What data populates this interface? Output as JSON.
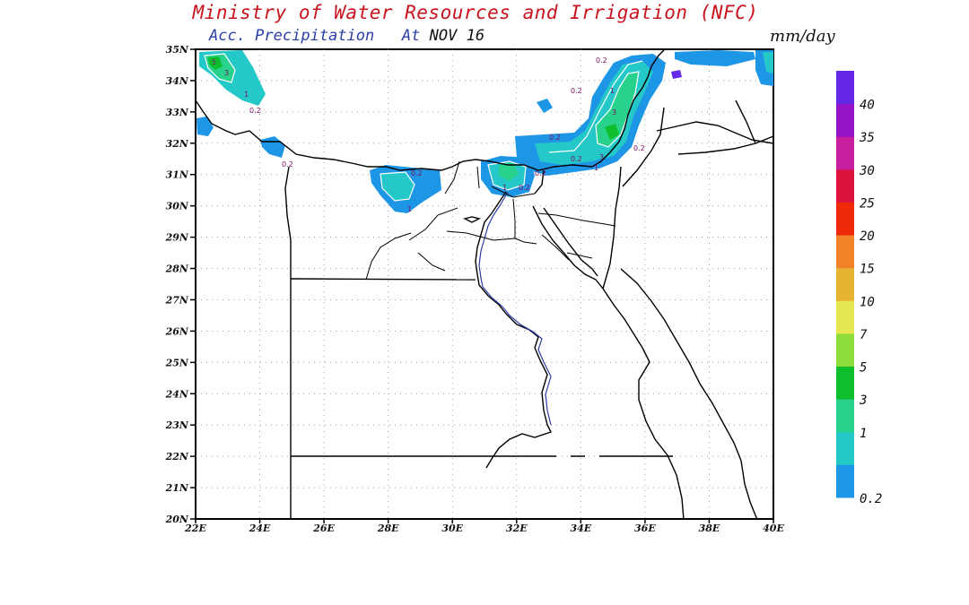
{
  "header": {
    "title": "Ministry of Water Resources and Irrigation (NFC)",
    "subtitle_prefix": "Acc. Precipitation   At",
    "subtitle_date": "NOV 16",
    "units": "mm/day"
  },
  "map": {
    "lat_labels": [
      "35N",
      "34N",
      "33N",
      "32N",
      "31N",
      "30N",
      "29N",
      "28N",
      "27N",
      "26N",
      "25N",
      "24N",
      "23N",
      "22N",
      "21N",
      "20N"
    ],
    "lon_labels": [
      "22E",
      "24E",
      "26E",
      "28E",
      "30E",
      "32E",
      "34E",
      "36E",
      "38E",
      "40E"
    ],
    "contour_labels": [
      "3",
      "5",
      "1",
      "0.2",
      "0.2",
      "0.2",
      "0.2",
      "1",
      "0.2",
      "0.2",
      "1",
      "0.2",
      "0.2",
      "1",
      "0.2",
      "3",
      "1",
      "3",
      "0.2"
    ]
  },
  "colorbar": {
    "colors": [
      "#1e96e6",
      "#24c8c8",
      "#28d28c",
      "#0fbe2d",
      "#8cdc3c",
      "#e6e650",
      "#e6b432",
      "#f08228",
      "#f0280a",
      "#dc143c",
      "#c81ea0",
      "#9614c8",
      "#6428e6"
    ],
    "labels": [
      "0.2",
      "1",
      "3",
      "5",
      "7",
      "10",
      "15",
      "20",
      "25",
      "30",
      "35",
      "40"
    ]
  }
}
